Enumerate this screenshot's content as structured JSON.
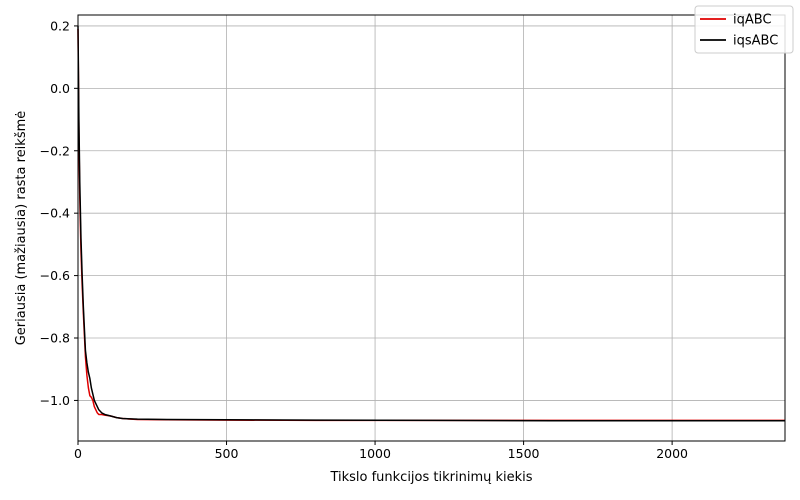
{
  "chart_data": {
    "type": "line",
    "title": "",
    "xlabel": "Tikslo funkcijos tikrinimų kiekis",
    "ylabel": "Geriausia (mažiausia) rasta reikšmė",
    "xlim": [
      0,
      2380
    ],
    "ylim": [
      -1.13,
      0.235
    ],
    "xticks": [
      0,
      500,
      1000,
      1500,
      2000
    ],
    "xtick_labels": [
      "0",
      "500",
      "1000",
      "1500",
      "2000"
    ],
    "yticks": [
      0.2,
      0.0,
      -0.2,
      -0.4,
      -0.6,
      -0.8,
      -1.0
    ],
    "ytick_labels": [
      "0.2",
      "0.0",
      "−0.2",
      "−0.4",
      "−0.6",
      "−0.8",
      "−1.0"
    ],
    "grid": true,
    "legend_position": "top-right",
    "series": [
      {
        "name": "iqABC",
        "color": "#e00000",
        "x": [
          0,
          3,
          6,
          10,
          14,
          18,
          22,
          25,
          30,
          35,
          40,
          45,
          50,
          55,
          60,
          65,
          70,
          80,
          90,
          110,
          130,
          150,
          200,
          300,
          500,
          800,
          1200,
          1600,
          2000,
          2380
        ],
        "y": [
          0.19,
          -0.15,
          -0.35,
          -0.52,
          -0.63,
          -0.72,
          -0.8,
          -0.86,
          -0.92,
          -0.96,
          -0.985,
          -0.99,
          -1.0,
          -1.02,
          -1.03,
          -1.04,
          -1.045,
          -1.045,
          -1.047,
          -1.05,
          -1.055,
          -1.058,
          -1.061,
          -1.062,
          -1.063,
          -1.064,
          -1.064,
          -1.064,
          -1.064,
          -1.064
        ]
      },
      {
        "name": "iqsABC",
        "color": "#000000",
        "x": [
          0,
          3,
          6,
          10,
          14,
          18,
          22,
          25,
          30,
          35,
          40,
          45,
          50,
          55,
          60,
          65,
          70,
          80,
          90,
          110,
          130,
          150,
          200,
          300,
          500,
          800,
          1200,
          1600,
          2000,
          2380
        ],
        "y": [
          0.2,
          -0.1,
          -0.3,
          -0.48,
          -0.6,
          -0.7,
          -0.78,
          -0.84,
          -0.88,
          -0.91,
          -0.93,
          -0.96,
          -0.98,
          -1.0,
          -1.01,
          -1.02,
          -1.03,
          -1.04,
          -1.045,
          -1.05,
          -1.055,
          -1.058,
          -1.06,
          -1.061,
          -1.062,
          -1.063,
          -1.064,
          -1.065,
          -1.065,
          -1.065
        ]
      }
    ]
  }
}
